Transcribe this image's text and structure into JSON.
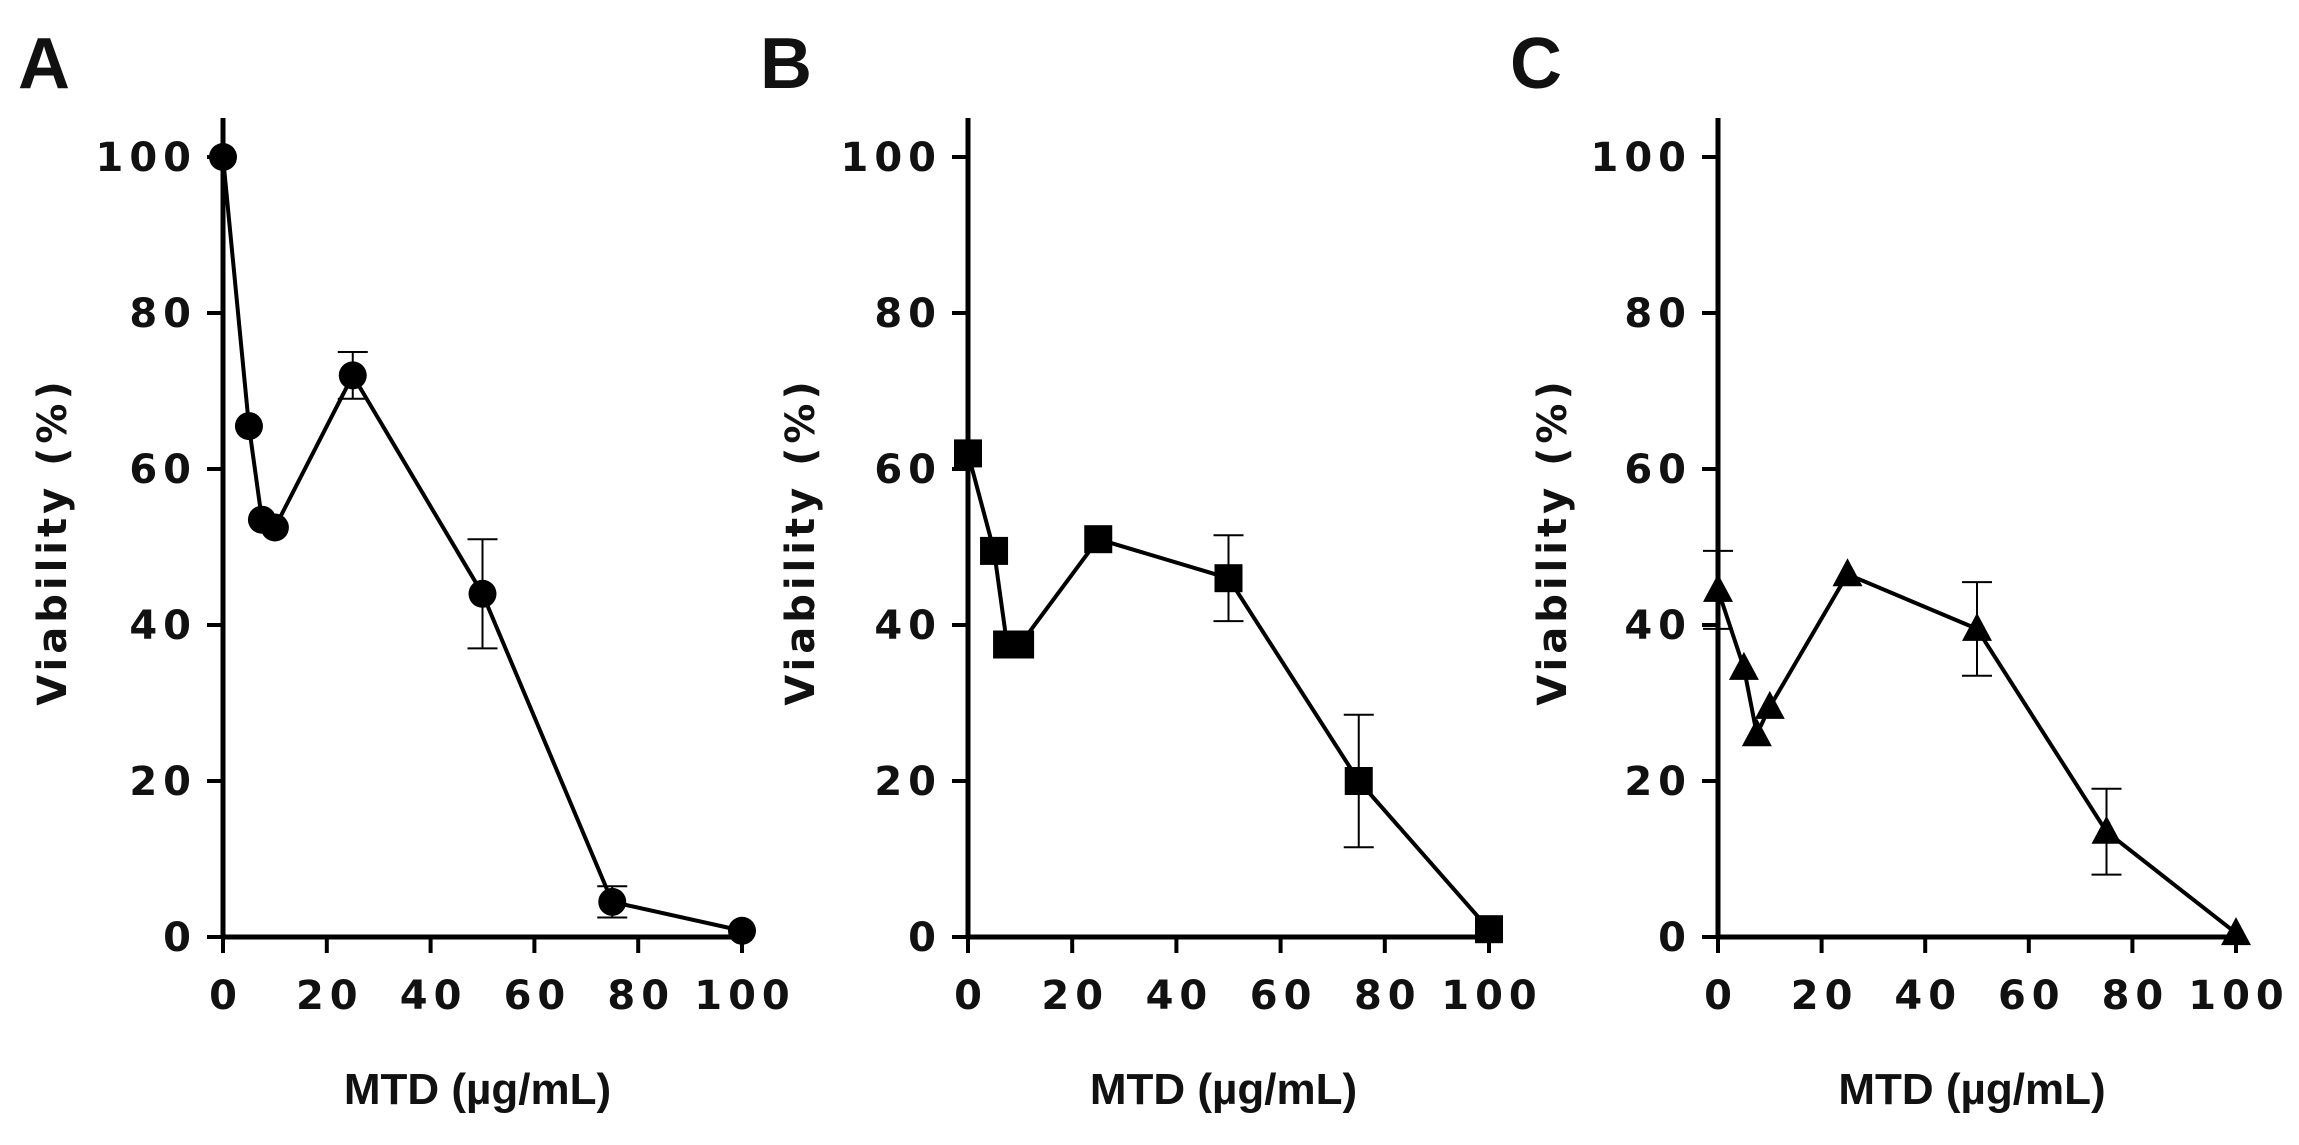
{
  "chart_data": [
    {
      "type": "line",
      "panel_label": "A",
      "xlabel": "MTD (µg/mL)",
      "ylabel": "Viability (%)",
      "xlim": [
        0,
        100
      ],
      "ylim": [
        0,
        105
      ],
      "xticks": [
        0,
        20,
        40,
        60,
        80,
        100
      ],
      "yticks": [
        0,
        20,
        40,
        60,
        80,
        100
      ],
      "marker": "circle",
      "x": [
        0,
        5,
        7.5,
        10,
        25,
        50,
        75,
        100
      ],
      "y": [
        100,
        65.5,
        53.5,
        52.5,
        72,
        44,
        4.5,
        0.8
      ],
      "err": [
        0,
        0,
        0,
        0,
        3,
        7,
        2,
        0
      ]
    },
    {
      "type": "line",
      "panel_label": "B",
      "xlabel": "MTD (µg/mL)",
      "ylabel": "Viability (%)",
      "xlim": [
        0,
        100
      ],
      "ylim": [
        0,
        105
      ],
      "xticks": [
        0,
        20,
        40,
        60,
        80,
        100
      ],
      "yticks": [
        0,
        20,
        40,
        60,
        80,
        100
      ],
      "marker": "square",
      "x": [
        0,
        5,
        7.5,
        10,
        25,
        50,
        75,
        100
      ],
      "y": [
        62,
        49.5,
        37.5,
        37.5,
        51,
        46,
        20,
        1
      ],
      "err": [
        0,
        0,
        0,
        0,
        0,
        5.5,
        8.5,
        0
      ]
    },
    {
      "type": "line",
      "panel_label": "C",
      "xlabel": "MTD (µg/mL)",
      "ylabel": "Viability (%)",
      "xlim": [
        0,
        100
      ],
      "ylim": [
        0,
        105
      ],
      "xticks": [
        0,
        20,
        40,
        60,
        80,
        100
      ],
      "yticks": [
        0,
        20,
        40,
        60,
        80,
        100
      ],
      "marker": "triangle",
      "x": [
        0,
        5,
        7.5,
        10,
        25,
        50,
        75,
        100
      ],
      "y": [
        44.5,
        34.5,
        26,
        29.5,
        46.5,
        39.5,
        13.5,
        0.5
      ],
      "err": [
        5,
        0,
        0,
        0,
        0,
        6,
        5.5,
        0
      ]
    }
  ]
}
